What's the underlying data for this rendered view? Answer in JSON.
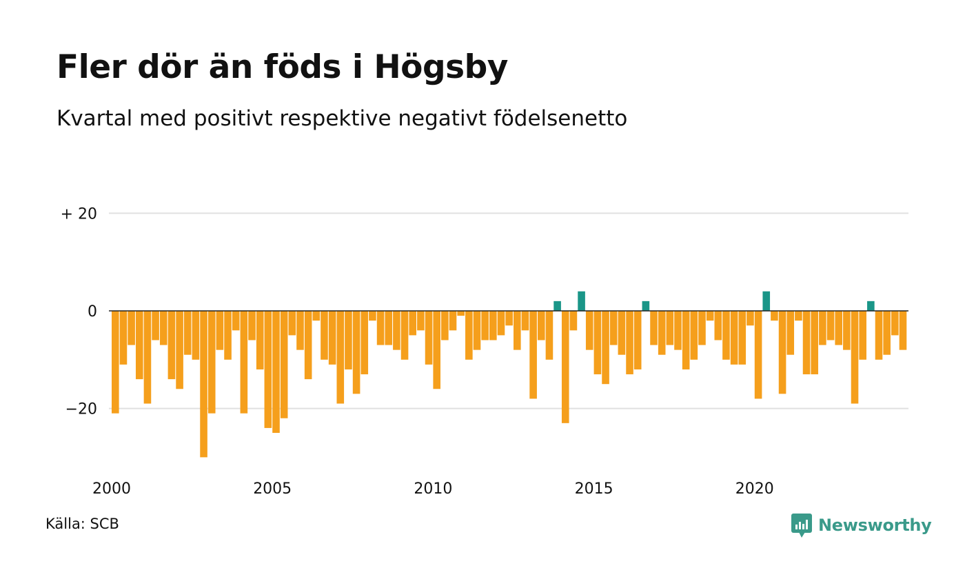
{
  "header": {
    "title": "Fler dör än föds i Högsby",
    "subtitle": "Kvartal med positivt respektive negativt födelsenetto"
  },
  "footer": {
    "source": "Källa: SCB",
    "brand": "Newsworthy"
  },
  "colors": {
    "negative": "#f59f1c",
    "positive": "#1a9688",
    "grid": "#e0e0e0",
    "zero_line": "#222222",
    "brand": "#3a9a8a"
  },
  "chart_data": {
    "type": "bar",
    "title": "Fler dör än föds i Högsby",
    "subtitle": "Kvartal med positivt respektive negativt födelsenetto",
    "x_start_year": 2000,
    "periods_per_year": 4,
    "ylim": [
      -30,
      30
    ],
    "y_ticks": [
      {
        "value": 20,
        "label": "+ 20"
      },
      {
        "value": 0,
        "label": "0"
      },
      {
        "value": -20,
        "label": "−20"
      }
    ],
    "x_ticks": [
      {
        "value": 2000,
        "label": "2000"
      },
      {
        "value": 2005,
        "label": "2005"
      },
      {
        "value": 2010,
        "label": "2010"
      },
      {
        "value": 2015,
        "label": "2015"
      },
      {
        "value": 2020,
        "label": "2020"
      }
    ],
    "grid": true,
    "legend": "none",
    "values": [
      -21,
      -11,
      -7,
      -14,
      -19,
      -6,
      -7,
      -14,
      -16,
      -9,
      -10,
      -30,
      -21,
      -8,
      -10,
      -4,
      -21,
      -6,
      -12,
      -24,
      -25,
      -22,
      -5,
      -8,
      -14,
      -2,
      -10,
      -11,
      -19,
      -12,
      -17,
      -13,
      -2,
      -7,
      -7,
      -8,
      -10,
      -5,
      -4,
      -11,
      -16,
      -6,
      -4,
      -1,
      -10,
      -8,
      -6,
      -6,
      -5,
      -3,
      -8,
      -4,
      -18,
      -6,
      -10,
      2,
      -23,
      -4,
      4,
      -8,
      -13,
      -15,
      -7,
      -9,
      -13,
      -12,
      2,
      -7,
      -9,
      -7,
      -8,
      -12,
      -10,
      -7,
      -2,
      -6,
      -10,
      -11,
      -11,
      -3,
      -18,
      4,
      -2,
      -17,
      -9,
      -2,
      -13,
      -13,
      -7,
      -6,
      -7,
      -8,
      -19,
      -10,
      2,
      -10,
      -9,
      -5,
      -8
    ]
  }
}
